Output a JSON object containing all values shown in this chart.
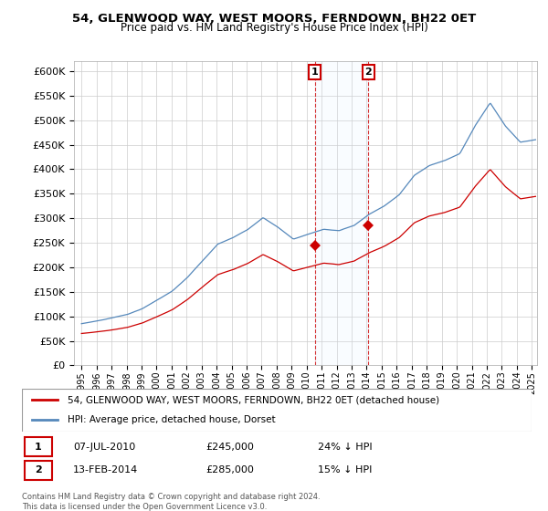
{
  "title": "54, GLENWOOD WAY, WEST MOORS, FERNDOWN, BH22 0ET",
  "subtitle": "Price paid vs. HM Land Registry's House Price Index (HPI)",
  "legend_line1": "54, GLENWOOD WAY, WEST MOORS, FERNDOWN, BH22 0ET (detached house)",
  "legend_line2": "HPI: Average price, detached house, Dorset",
  "annotation1_date": "07-JUL-2010",
  "annotation1_price": "£245,000",
  "annotation1_hpi": "24% ↓ HPI",
  "annotation2_date": "13-FEB-2014",
  "annotation2_price": "£285,000",
  "annotation2_hpi": "15% ↓ HPI",
  "footer": "Contains HM Land Registry data © Crown copyright and database right 2024.\nThis data is licensed under the Open Government Licence v3.0.",
  "red_color": "#cc0000",
  "blue_color": "#5588bb",
  "fill_color": "#ddeeff",
  "annotation_box_color": "#cc0000",
  "background_color": "#ffffff",
  "grid_color": "#cccccc",
  "ylim": [
    0,
    620000
  ],
  "yticks": [
    0,
    50000,
    100000,
    150000,
    200000,
    250000,
    300000,
    350000,
    400000,
    450000,
    500000,
    550000,
    600000
  ],
  "sale1_year": 2010.54,
  "sale1_value": 245000,
  "sale2_year": 2014.12,
  "sale2_value": 285000,
  "xstart": 1995.0,
  "xend": 2025.25
}
